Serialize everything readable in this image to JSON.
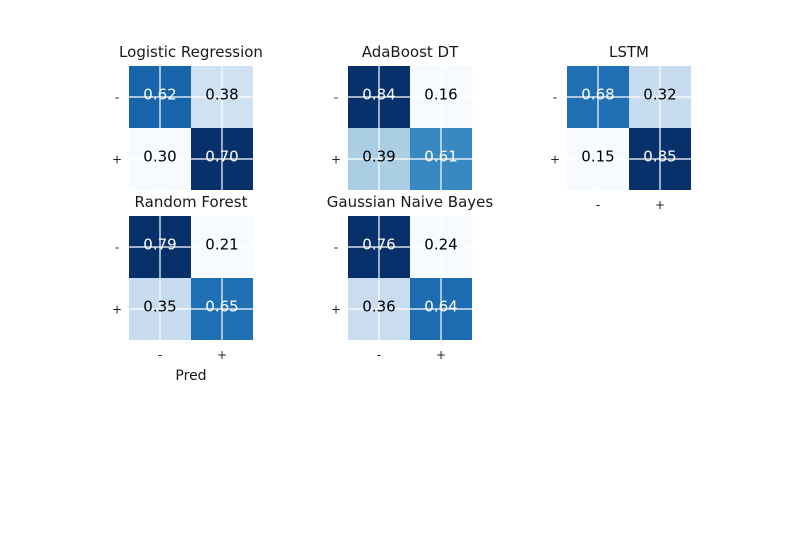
{
  "chart_data": [
    {
      "type": "heatmap",
      "title": "Logistic Regression",
      "row_labels": [
        "-",
        "+"
      ],
      "col_labels": [
        "-",
        "+"
      ],
      "values": [
        [
          0.62,
          0.38
        ],
        [
          0.3,
          0.7
        ]
      ],
      "cell_text": [
        [
          "0.62",
          "0.38"
        ],
        [
          "0.30",
          "0.70"
        ]
      ],
      "colormap": "Blues",
      "grid": true
    },
    {
      "type": "heatmap",
      "title": "AdaBoost DT",
      "row_labels": [
        "-",
        "+"
      ],
      "col_labels": [
        "-",
        "+"
      ],
      "values": [
        [
          0.84,
          0.16
        ],
        [
          0.39,
          0.61
        ]
      ],
      "cell_text": [
        [
          "0.84",
          "0.16"
        ],
        [
          "0.39",
          "0.61"
        ]
      ],
      "colormap": "Blues",
      "grid": true
    },
    {
      "type": "heatmap",
      "title": "LSTM",
      "row_labels": [
        "-",
        "+"
      ],
      "col_labels": [
        "-",
        "+"
      ],
      "values": [
        [
          0.68,
          0.32
        ],
        [
          0.15,
          0.85
        ]
      ],
      "cell_text": [
        [
          "0.68",
          "0.32"
        ],
        [
          "0.15",
          "0.85"
        ]
      ],
      "colormap": "Blues",
      "grid": true
    },
    {
      "type": "heatmap",
      "title": "Random Forest",
      "row_labels": [
        "-",
        "+"
      ],
      "col_labels": [
        "-",
        "+"
      ],
      "values": [
        [
          0.79,
          0.21
        ],
        [
          0.35,
          0.65
        ]
      ],
      "cell_text": [
        [
          "0.79",
          "0.21"
        ],
        [
          "0.35",
          "0.65"
        ]
      ],
      "xlabel": "Pred",
      "colormap": "Blues",
      "grid": true
    },
    {
      "type": "heatmap",
      "title": "Gaussian Naive Bayes",
      "row_labels": [
        "-",
        "+"
      ],
      "col_labels": [
        "-",
        "+"
      ],
      "values": [
        [
          0.76,
          0.24
        ],
        [
          0.36,
          0.64
        ]
      ],
      "cell_text": [
        [
          "0.76",
          "0.24"
        ],
        [
          "0.36",
          "0.64"
        ]
      ],
      "colormap": "Blues",
      "grid": true
    }
  ],
  "colors": {
    "blues_low": "#f7fbff",
    "blues_mid_low": "#c6dbef",
    "blues_mid": "#6baed6",
    "blues_mid_high": "#2171b5",
    "blues_high": "#08306b",
    "grid_line": "#ffffff",
    "text": "#000000"
  }
}
